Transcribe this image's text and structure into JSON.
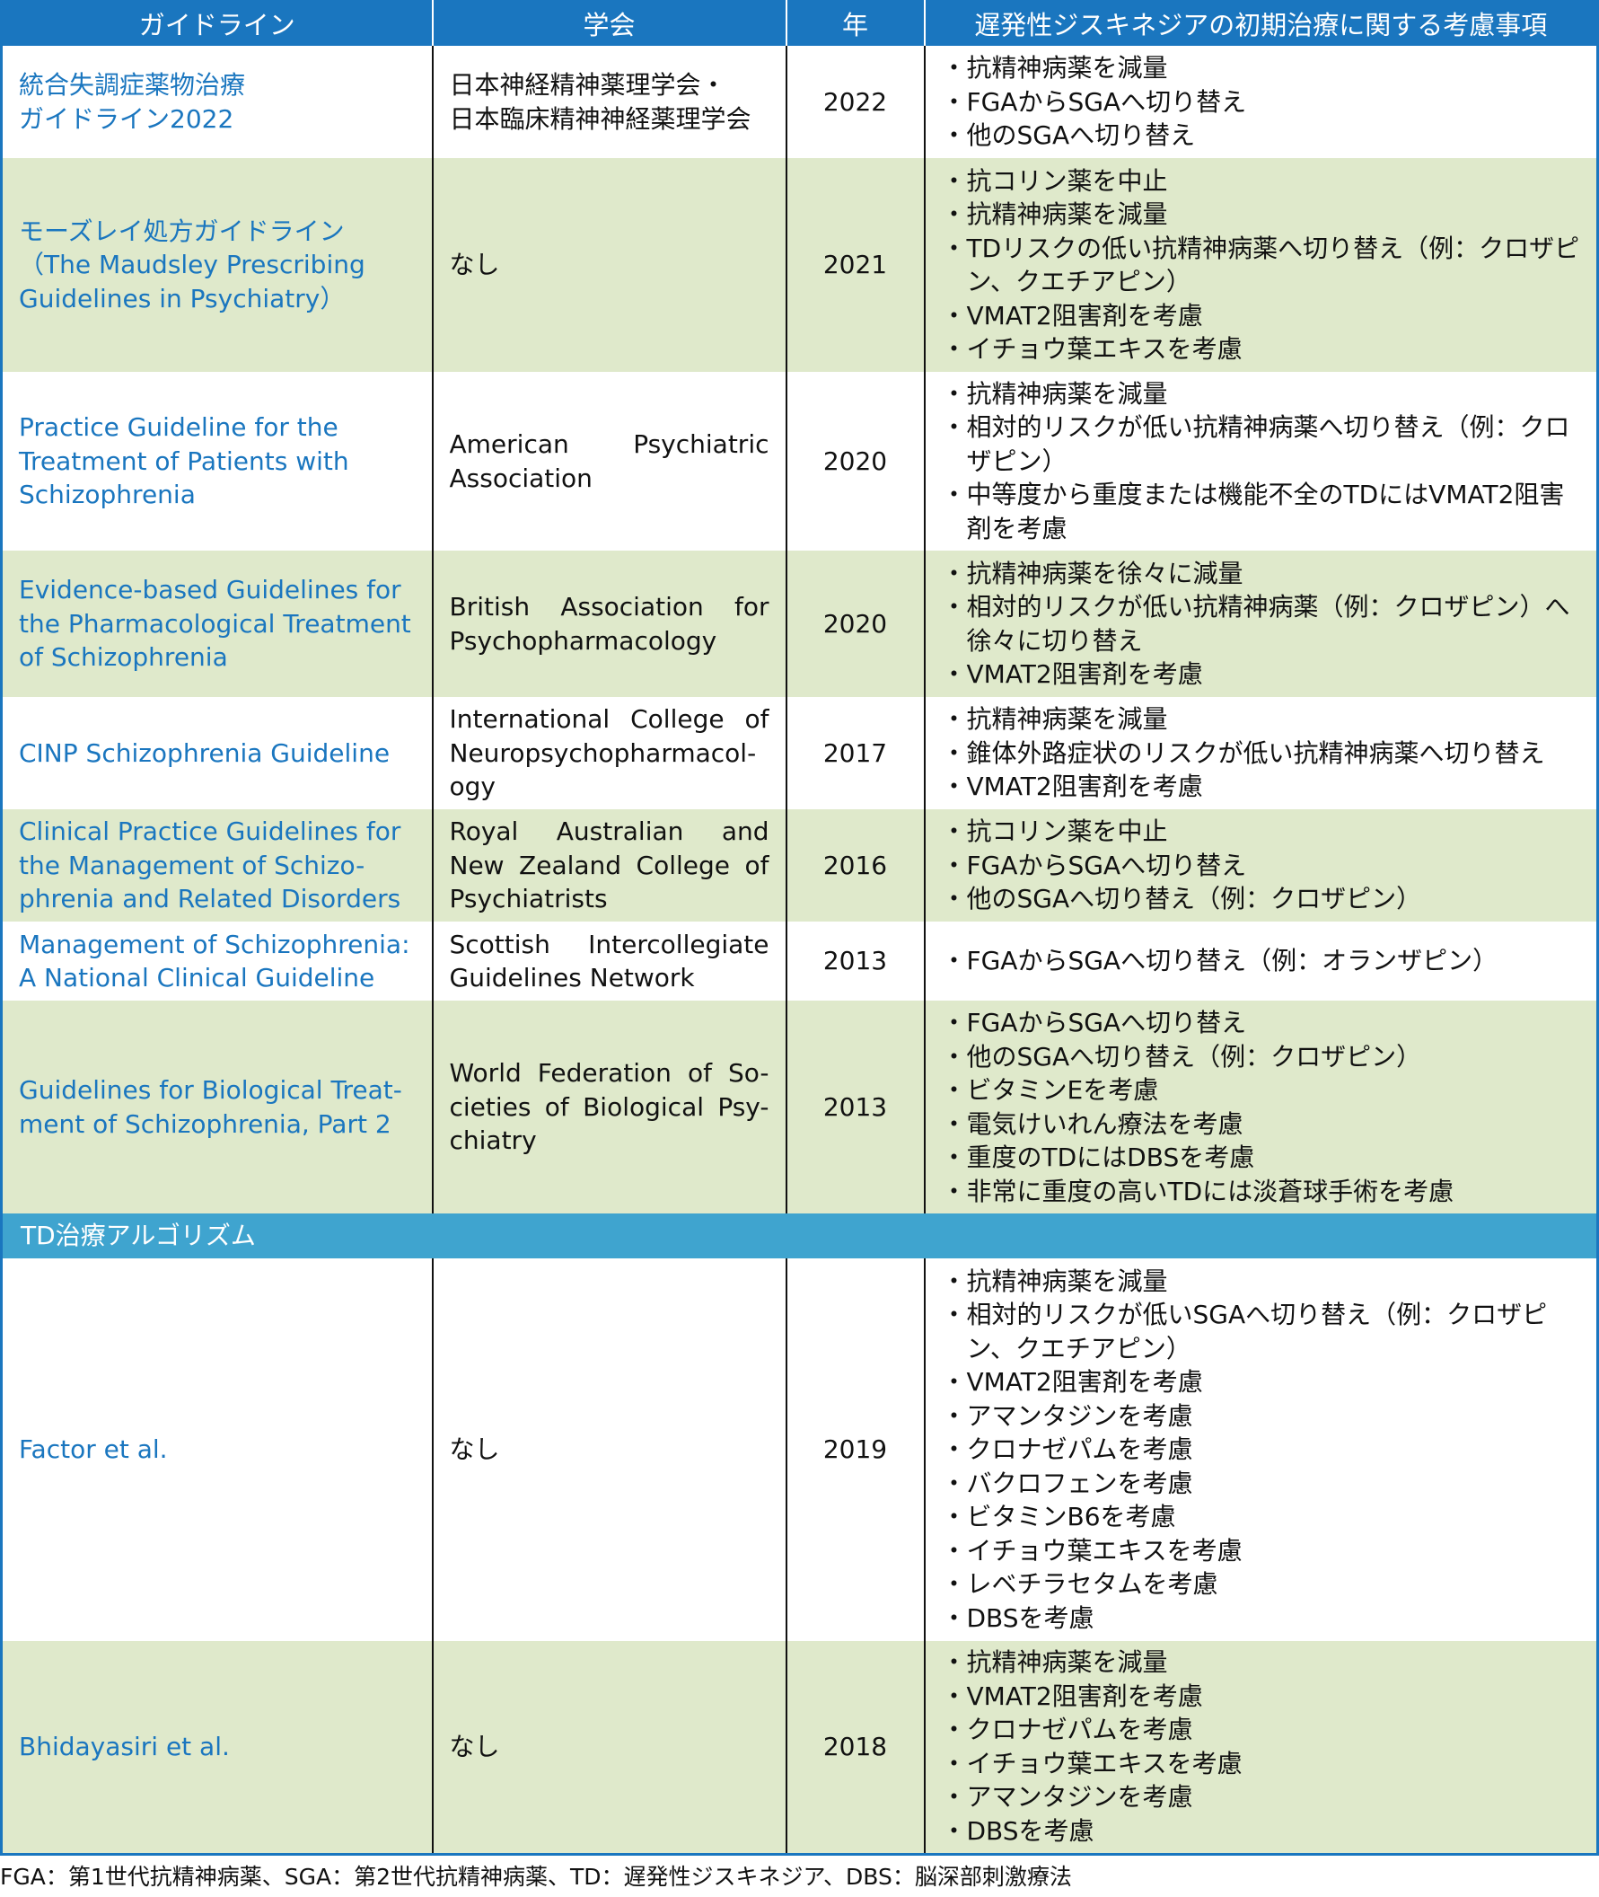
{
  "headers": [
    "ガイドライン",
    "学会",
    "年",
    "遅発性ジスキネジアの初期治療に関する考慮事項"
  ],
  "rows": [
    {
      "guideline": "統合失調症薬物治療\nガイドライン2022",
      "society": "日本神経精神薬理学会・\n日本臨床精神神経薬理学会",
      "year": "2022",
      "items": [
        "抗精神病薬を減量",
        "FGAからSGAへ切り替え",
        "他のSGAへ切り替え"
      ]
    },
    {
      "guideline": "モーズレイ処方ガイドライン（The Maudsley Prescribing Guidelines in Psychiatry）",
      "society": "なし",
      "year": "2021",
      "items": [
        "抗コリン薬を中止",
        "抗精神病薬を減量",
        "TDリスクの低い抗精神病薬へ切り替え（例：クロザピン、クエチアピン）",
        "VMAT2阻害剤を考慮",
        "イチョウ葉エキスを考慮"
      ]
    },
    {
      "guideline": "Practice Guideline for the Treatment of Patients with Schizophrenia",
      "society": "American Psychiatric Association",
      "year": "2020",
      "items": [
        "抗精神病薬を減量",
        "相対的リスクが低い抗精神病薬へ切り替え（例：クロザピン）",
        "中等度から重度または機能不全のTDにはVMAT2阻害剤を考慮"
      ]
    },
    {
      "guideline": "Evidence-based Guidelines for the Pharmacological Treatment of Schizophrenia",
      "society": "British Association for Psychopharmacology",
      "year": "2020",
      "items": [
        "抗精神病薬を徐々に減量",
        "相対的リスクが低い抗精神病薬（例：クロザピン）へ徐々に切り替え",
        "VMAT2阻害剤を考慮"
      ]
    },
    {
      "guideline": "CINP Schizophrenia Guideline",
      "society": "International College of Neuropsychopharmacol-ogy",
      "year": "2017",
      "items": [
        "抗精神病薬を減量",
        "錐体外路症状のリスクが低い抗精神病薬へ切り替え",
        "VMAT2阻害剤を考慮"
      ]
    },
    {
      "guideline": "Clinical Practice Guidelines for the Management of Schizo-phrenia and Related Disorders",
      "society": "Royal Australian and New Zealand College of Psychiatrists",
      "year": "2016",
      "items": [
        "抗コリン薬を中止",
        "FGAからSGAへ切り替え",
        "他のSGAへ切り替え（例：クロザピン）"
      ]
    },
    {
      "guideline": "Management of Schizophrenia: A National Clinical Guideline",
      "society": "Scottish Intercollegiate Guidelines Network",
      "year": "2013",
      "items": [
        "FGAからSGAへ切り替え（例：オランザピン）"
      ]
    },
    {
      "guideline": "Guidelines for Biological Treat-ment of Schizophrenia, Part 2",
      "society": "World Federation of So-cieties of Biological Psy-chiatry",
      "year": "2013",
      "items": [
        "FGAからSGAへ切り替え",
        "他のSGAへ切り替え（例：クロザピン）",
        "ビタミンEを考慮",
        "電気けいれん療法を考慮",
        "重度のTDにはDBSを考慮",
        "非常に重度の高いTDには淡蒼球手術を考慮"
      ]
    }
  ],
  "section_label": "TD治療アルゴリズム",
  "algorithms": [
    {
      "guideline": "Factor et al.",
      "society": "なし",
      "year": "2019",
      "items": [
        "抗精神病薬を減量",
        "相対的リスクが低いSGAへ切り替え（例：クロザピン、クエチアピン）",
        "VMAT2阻害剤を考慮",
        "アマンタジンを考慮",
        "クロナゼパムを考慮",
        "バクロフェンを考慮",
        "ビタミンB6を考慮",
        "イチョウ葉エキスを考慮",
        "レベチラセタムを考慮",
        "DBSを考慮"
      ]
    },
    {
      "guideline": "Bhidayasiri et al.",
      "society": "なし",
      "year": "2018",
      "items": [
        "抗精神病薬を減量",
        "VMAT2阻害剤を考慮",
        "クロナゼパムを考慮",
        "イチョウ葉エキスを考慮",
        "アマンタジンを考慮",
        "DBSを考慮"
      ]
    }
  ],
  "footnote": "FGA：第1世代抗精神病薬、SGA：第2世代抗精神病薬、TD：遅発性ジスキネジア、DBS：脳深部刺激療法",
  "colors": {
    "header": "#1a76bf",
    "section": "#3fa4cf",
    "alt_row": "#dfe9cb",
    "link": "#1a76bf"
  }
}
